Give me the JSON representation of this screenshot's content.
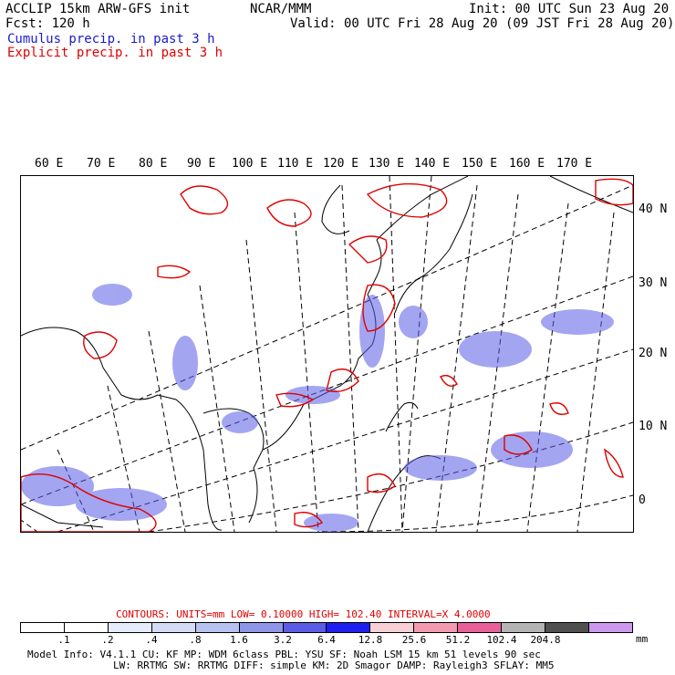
{
  "header": {
    "model_title": "ACCLIP 15km ARW-GFS init",
    "center": "NCAR/MMM",
    "init": "Init: 00 UTC Sun 23 Aug 20",
    "fcst": "Fcst:  120 h",
    "valid": "Valid: 00 UTC Fri 28 Aug 20 (09 JST Fri 28 Aug 20)",
    "legend_cumulus": "Cumulus precip. in past 3 h",
    "legend_explicit": "Explicit precip. in past 3 h"
  },
  "map": {
    "lon_labels": [
      "60 E",
      "70 E",
      "80 E",
      "90 E",
      "100 E",
      "110 E",
      "120 E",
      "130 E",
      "140 E",
      "150 E",
      "160 E",
      "170 E"
    ],
    "lat_labels": [
      "40 N",
      "30 N",
      "20 N",
      "10 N",
      "0"
    ],
    "colors": {
      "cumulus": "#1a1acc",
      "explicit": "#e00000",
      "coast": "#000000",
      "grid": "#000000"
    }
  },
  "contours": {
    "label": "CONTOURS:  UNITS=mm  LOW=  0.10000      HIGH=  102.40       INTERVAL=X  4.0000"
  },
  "colorbar": {
    "unit": "mm",
    "labels": [
      ".1",
      ".2",
      ".4",
      ".8",
      "1.6",
      "3.2",
      "6.4",
      "12.8",
      "25.6",
      "51.2",
      "102.4",
      "204.8"
    ],
    "colors": [
      "#ffffff",
      "#ffffff",
      "#e6ecfa",
      "#d4dcf5",
      "#b8c2f0",
      "#8f96e8",
      "#5b5ce6",
      "#1e1ef0",
      "#f7d0d6",
      "#f39ab0",
      "#e8609a",
      "#b4b4b4",
      "#505050",
      "#cc99ee"
    ]
  },
  "footer": {
    "line1": "Model Info: V4.1.1     CU: KF      MP: WDM 6class   PBL: YSU        SF: Noah LSM    15 km    51 levels   90 sec",
    "line2": "LW: RRTMG    SW: RRTMG   DIFF: simple KM: 2D Smagor DAMP: Rayleigh3  SFLAY: MM5"
  }
}
